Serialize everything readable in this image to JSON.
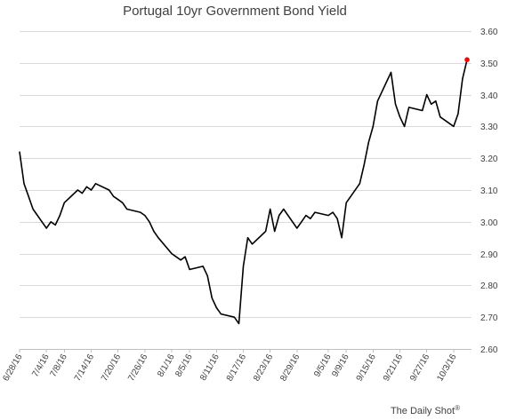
{
  "chart_data": {
    "type": "line",
    "title": "Portugal 10yr Government Bond Yield",
    "xlabel": "",
    "ylabel": "",
    "ylim": [
      2.6,
      3.6
    ],
    "yticks": [
      "2.60",
      "2.70",
      "2.80",
      "2.90",
      "3.00",
      "3.10",
      "3.20",
      "3.30",
      "3.40",
      "3.50",
      "3.60"
    ],
    "xticks": [
      "6/28/16",
      "7/4/16",
      "7/8/16",
      "7/14/16",
      "7/20/16",
      "7/26/16",
      "8/1/16",
      "8/5/16",
      "8/11/16",
      "8/17/16",
      "8/23/16",
      "8/29/16",
      "9/5/16",
      "9/9/16",
      "9/15/16",
      "9/21/16",
      "9/27/16",
      "10/3/16"
    ],
    "grid": true,
    "legend": "none",
    "line_color": "#000000",
    "last_point_color": "#ff0000",
    "x": [
      "6/28/16",
      "6/29/16",
      "6/30/16",
      "7/1/16",
      "7/4/16",
      "7/5/16",
      "7/6/16",
      "7/7/16",
      "7/8/16",
      "7/11/16",
      "7/12/16",
      "7/13/16",
      "7/14/16",
      "7/15/16",
      "7/18/16",
      "7/19/16",
      "7/20/16",
      "7/21/16",
      "7/22/16",
      "7/25/16",
      "7/26/16",
      "7/27/16",
      "7/28/16",
      "7/29/16",
      "8/1/16",
      "8/2/16",
      "8/3/16",
      "8/4/16",
      "8/5/16",
      "8/8/16",
      "8/9/16",
      "8/10/16",
      "8/11/16",
      "8/12/16",
      "8/15/16",
      "8/16/16",
      "8/17/16",
      "8/18/16",
      "8/19/16",
      "8/22/16",
      "8/23/16",
      "8/24/16",
      "8/25/16",
      "8/26/16",
      "8/29/16",
      "8/30/16",
      "8/31/16",
      "9/1/16",
      "9/2/16",
      "9/5/16",
      "9/6/16",
      "9/7/16",
      "9/8/16",
      "9/9/16",
      "9/12/16",
      "9/13/16",
      "9/14/16",
      "9/15/16",
      "9/16/16",
      "9/19/16",
      "9/20/16",
      "9/21/16",
      "9/22/16",
      "9/23/16",
      "9/26/16",
      "9/27/16",
      "9/28/16",
      "9/29/16",
      "9/30/16",
      "10/3/16",
      "10/4/16",
      "10/5/16",
      "10/6/16"
    ],
    "series": [
      {
        "values": [
          3.22,
          3.12,
          3.08,
          3.04,
          2.98,
          3.0,
          2.99,
          3.02,
          3.06,
          3.1,
          3.09,
          3.11,
          3.1,
          3.12,
          3.1,
          3.08,
          3.07,
          3.06,
          3.04,
          3.03,
          3.02,
          3.0,
          2.97,
          2.95,
          2.9,
          2.89,
          2.88,
          2.89,
          2.85,
          2.86,
          2.83,
          2.76,
          2.73,
          2.71,
          2.7,
          2.68,
          2.86,
          2.95,
          2.93,
          2.97,
          3.04,
          2.97,
          3.02,
          3.04,
          2.98,
          3.0,
          3.02,
          3.01,
          3.03,
          3.02,
          3.03,
          3.01,
          2.95,
          3.06,
          3.12,
          3.18,
          3.25,
          3.3,
          3.38,
          3.47,
          3.37,
          3.33,
          3.3,
          3.36,
          3.35,
          3.4,
          3.37,
          3.38,
          3.33,
          3.3,
          3.34,
          3.45,
          3.51
        ]
      }
    ]
  },
  "credit": {
    "text": "The Daily Shot",
    "mark": "®"
  }
}
